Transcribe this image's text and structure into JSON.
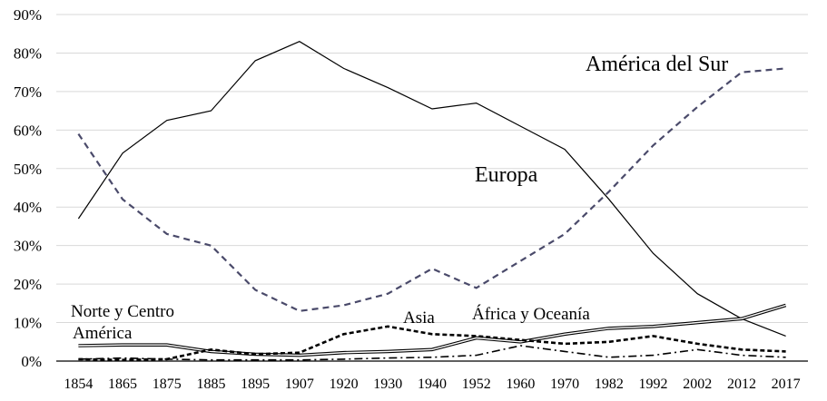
{
  "chart_data": {
    "type": "line",
    "title": "",
    "xlabel": "",
    "ylabel": "",
    "x": [
      "1854",
      "1865",
      "1875",
      "1885",
      "1895",
      "1907",
      "1920",
      "1930",
      "1940",
      "1952",
      "1960",
      "1970",
      "1982",
      "1992",
      "2002",
      "2012",
      "2017"
    ],
    "ylim": [
      0,
      90
    ],
    "yticks": [
      "0%",
      "10%",
      "20%",
      "30%",
      "40%",
      "50%",
      "60%",
      "70%",
      "80%",
      "90%"
    ],
    "grid": true,
    "legend": "none",
    "series": [
      {
        "name": "Europa",
        "style": "solid-thin",
        "color": "#000000",
        "values": [
          37,
          54,
          62.5,
          65,
          78,
          83,
          76,
          71,
          65.5,
          67,
          61,
          55,
          42,
          28,
          17.5,
          11,
          6.5
        ]
      },
      {
        "name": "América del Sur",
        "style": "dashed",
        "color": "#4a4a6a",
        "values": [
          59,
          42,
          33,
          30,
          18.5,
          13,
          14.5,
          17.5,
          24,
          19,
          26,
          33,
          44,
          56,
          66,
          75,
          76
        ]
      },
      {
        "name": "Norte y Centro América",
        "style": "double",
        "color": "#000000",
        "values": [
          4,
          4.2,
          4.2,
          2.5,
          1.8,
          1.5,
          2.2,
          2.5,
          3,
          6,
          5,
          7,
          8.5,
          9,
          10,
          11,
          14.5
        ]
      },
      {
        "name": "Asia",
        "style": "dashed-bold",
        "color": "#000000",
        "values": [
          0.5,
          0.3,
          0.5,
          3,
          1.8,
          2.2,
          7,
          9,
          7,
          6.5,
          5.5,
          4.5,
          5,
          6.5,
          4.5,
          3,
          2.5
        ]
      },
      {
        "name": "África y Oceanía",
        "style": "dash-dot",
        "color": "#000000",
        "values": [
          0.5,
          0.8,
          0.5,
          0.3,
          0.3,
          0.3,
          0.5,
          0.8,
          1,
          1.5,
          4,
          2.5,
          1,
          1.5,
          3,
          1.5,
          1
        ]
      }
    ],
    "annotations": [
      {
        "text": "América del Sur",
        "series": "América del Sur"
      },
      {
        "text": "Europa",
        "series": "Europa"
      },
      {
        "text": "Norte y Centro",
        "series": "Norte y Centro América"
      },
      {
        "text": "América",
        "series": "Norte y Centro América"
      },
      {
        "text": "Asia",
        "series": "Asia"
      },
      {
        "text": "África y Oceanía",
        "series": "África y Oceanía"
      }
    ]
  }
}
